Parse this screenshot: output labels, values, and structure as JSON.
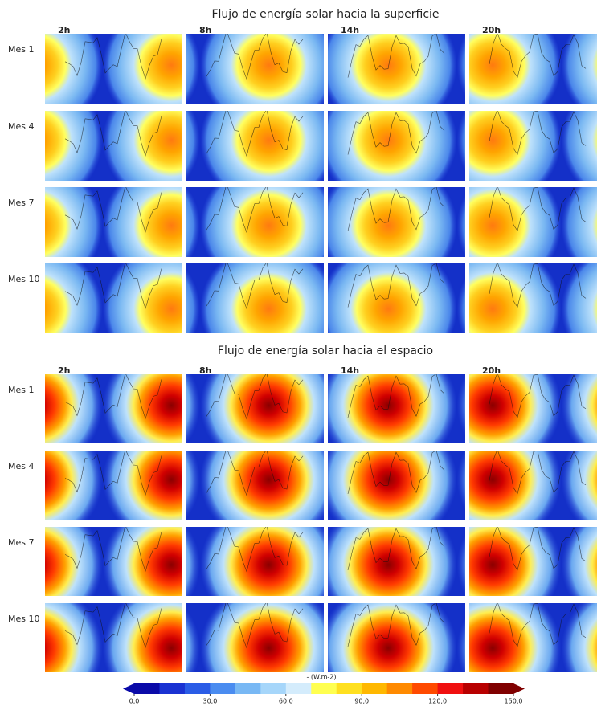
{
  "sections": [
    {
      "title": "Flujo de energía solar hacia la superficie",
      "columns": [
        "2h",
        "8h",
        "14h",
        "20h"
      ],
      "rows": [
        "Mes 1",
        "Mes 4",
        "Mes 7",
        "Mes 10"
      ]
    },
    {
      "title": "Flujo de energía solar hacia el espacio",
      "columns": [
        "2h",
        "8h",
        "14h",
        "20h"
      ],
      "rows": [
        "Mes 1",
        "Mes 4",
        "Mes 7",
        "Mes 10"
      ]
    }
  ],
  "colorbar": {
    "label": "- (W.m-2)",
    "range": [
      0,
      150
    ],
    "ticks": [
      {
        "value": 0,
        "label": "0,0"
      },
      {
        "value": 30,
        "label": "30,0"
      },
      {
        "value": 60,
        "label": "60,0"
      },
      {
        "value": 90,
        "label": "90,0"
      },
      {
        "value": 120,
        "label": "120,0"
      },
      {
        "value": 150,
        "label": "150,0"
      }
    ],
    "colors": [
      "#0a0aa8",
      "#1a32d2",
      "#2a5ce6",
      "#4a8cf0",
      "#78b8f4",
      "#a6d6fa",
      "#d4ecfc",
      "#ffff50",
      "#ffe020",
      "#ffb800",
      "#ff8a00",
      "#ff4a00",
      "#f01010",
      "#b80000",
      "#800000"
    ]
  }
}
